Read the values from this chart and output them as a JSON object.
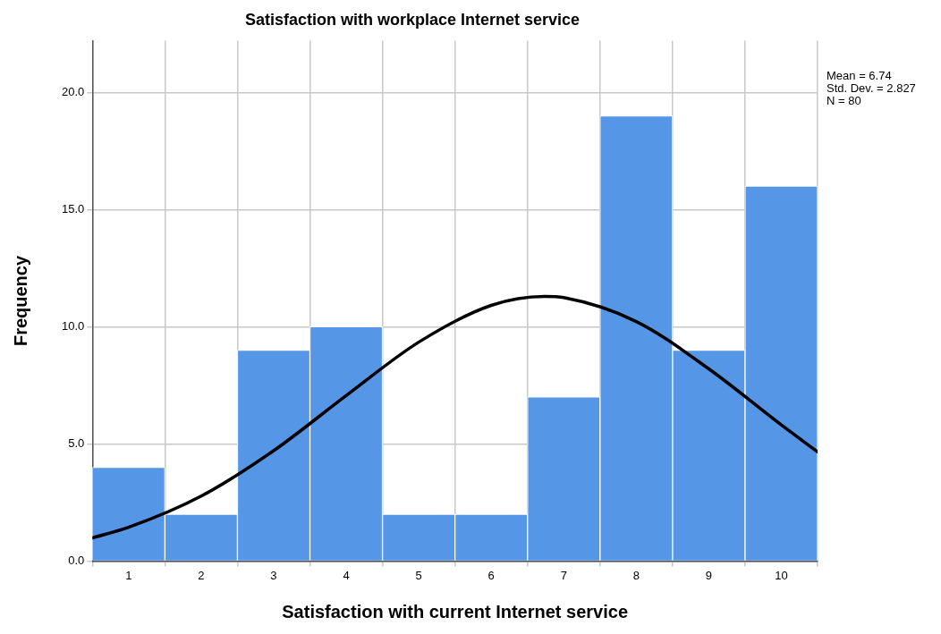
{
  "chart_data": {
    "type": "histogram",
    "title": "Satisfaction with workplace Internet service",
    "xlabel": "Satisfaction with current Internet service",
    "ylabel": "Frequency",
    "bins": [
      0.5,
      1.5,
      2.5,
      3.5,
      4.5,
      5.5,
      6.5,
      7.5,
      8.5,
      9.5,
      10.5
    ],
    "series": [
      {
        "color": "#5596e6",
        "values": [
          4,
          2,
          9,
          10,
          2,
          2,
          7,
          19,
          9,
          16
        ]
      },
      {
        "type": "line",
        "color": "#000000",
        "x": [
          0.5,
          1,
          2,
          3,
          4,
          5,
          6,
          6.74,
          7,
          8,
          9,
          10,
          10.5
        ],
        "values": [
          0.99,
          1.44,
          2.77,
          4.71,
          7.06,
          9.34,
          10.91,
          11.29,
          11.24,
          10.22,
          8.2,
          5.81,
          4.66
        ]
      }
    ],
    "xlim": [
      0.5,
      10.5
    ],
    "xticks": [
      1,
      2,
      3,
      4,
      5,
      6,
      7,
      8,
      9,
      10
    ],
    "ylim": [
      0,
      22.2
    ],
    "yticks": [
      {
        "value": 0,
        "label": "0.0"
      },
      {
        "value": 5,
        "label": "5.0"
      },
      {
        "value": 10,
        "label": "10.0"
      },
      {
        "value": 15,
        "label": "15.0"
      },
      {
        "value": 20,
        "label": "20.0"
      }
    ],
    "grid": true,
    "legend": false,
    "marker": "none",
    "line_style": "solid",
    "annotations": [
      "Mean = 6.74",
      "Std. Dev. = 2.827",
      "N = 80"
    ]
  }
}
